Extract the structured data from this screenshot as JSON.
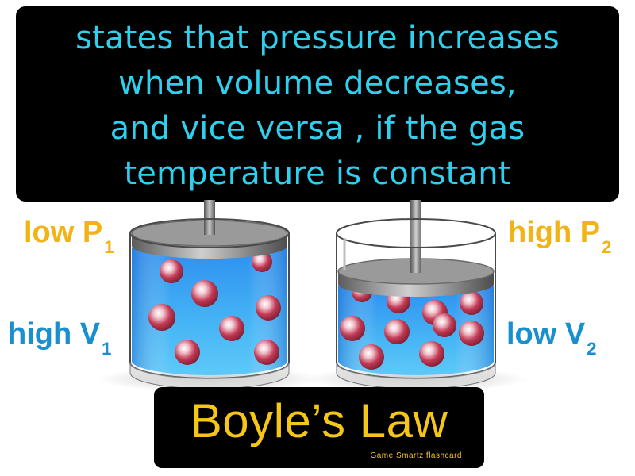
{
  "definition": {
    "lines": [
      "states that pressure increases",
      "when volume decreases,",
      "and vice versa , if the gas",
      "temperature is constant"
    ]
  },
  "labels": {
    "p1": {
      "text": "low P",
      "sub": "1"
    },
    "p2": {
      "text": "high P",
      "sub": "2"
    },
    "v1": {
      "text": "high V",
      "sub": "1"
    },
    "v2": {
      "text": "low V",
      "sub": "2"
    }
  },
  "title": "Boyle’s Law",
  "credit": "Game  Smartz  flashcard",
  "colors": {
    "definition_text": "#2fd0ee",
    "pressure_label": "#f2b317",
    "volume_label": "#1a8fcf",
    "title_text": "#f5c518",
    "water": "#3aa9ee",
    "molecule": "#b8304a"
  }
}
